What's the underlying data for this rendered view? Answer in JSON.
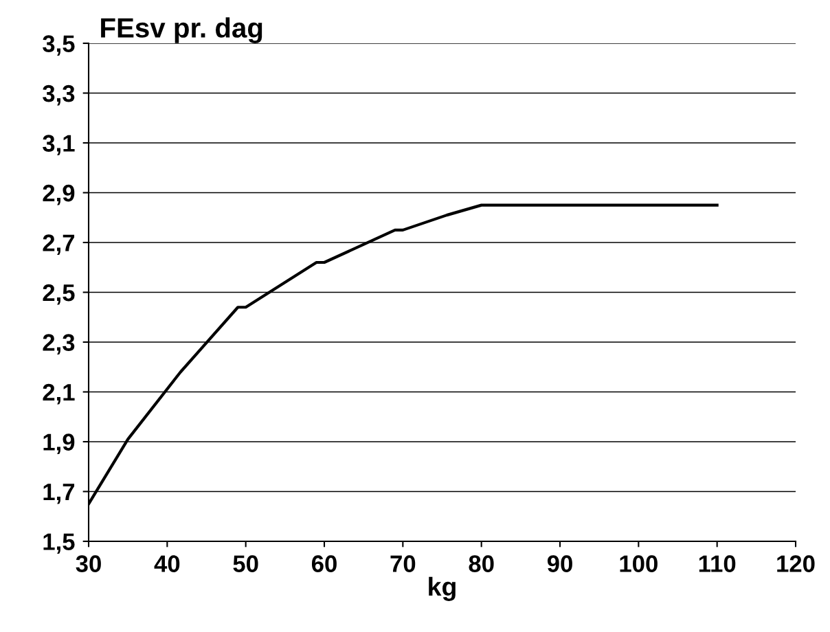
{
  "chart_data": {
    "type": "line",
    "title": "FEsv pr. dag",
    "xlabel": "kg",
    "x": [
      30,
      35,
      41.7,
      49,
      50,
      59,
      60,
      69,
      70,
      75.6,
      80,
      110
    ],
    "series": [
      {
        "color": "#000000",
        "values": [
          1.65,
          1.91,
          2.18,
          2.44,
          2.44,
          2.62,
          2.62,
          2.75,
          2.75,
          2.81,
          2.85,
          2.85
        ]
      }
    ],
    "xlim": [
      30,
      120
    ],
    "xticks": [
      30,
      40,
      50,
      60,
      70,
      80,
      90,
      100,
      110,
      120
    ],
    "ylim": [
      1.5,
      3.5
    ],
    "yticks": [
      {
        "value": 1.5,
        "label": "1,5"
      },
      {
        "value": 1.7,
        "label": "1,7"
      },
      {
        "value": 1.9,
        "label": "1,9"
      },
      {
        "value": 2.1,
        "label": "2,1"
      },
      {
        "value": 2.3,
        "label": "2,3"
      },
      {
        "value": 2.5,
        "label": "2,5"
      },
      {
        "value": 2.7,
        "label": "2,7"
      },
      {
        "value": 2.9,
        "label": "2,9"
      },
      {
        "value": 3.1,
        "label": "3,1"
      },
      {
        "value": 3.3,
        "label": "3,3"
      },
      {
        "value": 3.5,
        "label": "3,5"
      }
    ],
    "grid": "y",
    "marker": "none",
    "line_style": "solid"
  }
}
